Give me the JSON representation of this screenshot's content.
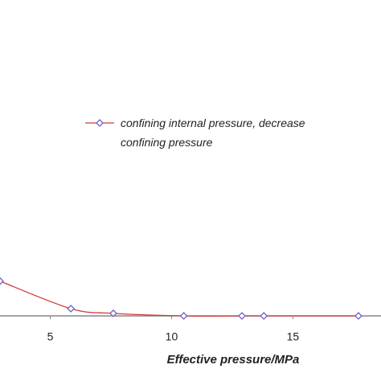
{
  "chart_data": {
    "type": "line",
    "x_label": "Effective pressure/MPa",
    "x": [
      2.93,
      5.85,
      7.6,
      10.5,
      12.9,
      13.8,
      17.7
    ],
    "series": [
      {
        "name": "confining internal pressure, decrease confining pressure",
        "color": "#d03a3a",
        "marker_color": "#7060c8",
        "values": [
          0.11,
          0.023,
          0.008,
          0.0,
          0.0,
          0.0,
          0.0
        ]
      }
    ],
    "xlim": [
      2.93,
      18.63
    ],
    "ylim": [
      0,
      1
    ],
    "xticks": [
      5,
      10,
      15
    ]
  }
}
